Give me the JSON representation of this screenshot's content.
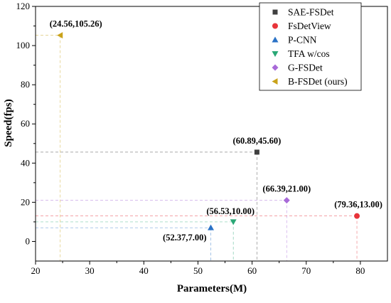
{
  "chart_data": {
    "type": "scatter",
    "title": "",
    "xlabel": "Parameters(M)",
    "ylabel": "Speed(fps)",
    "xlim": [
      20,
      85
    ],
    "ylim": [
      -10,
      120
    ],
    "xticks": [
      20,
      30,
      40,
      50,
      60,
      70,
      80
    ],
    "yticks": [
      0,
      20,
      40,
      60,
      80,
      100,
      120
    ],
    "grid": false,
    "legend_position": "top-right",
    "series": [
      {
        "name": "SAE-FSDet",
        "marker": "square",
        "color": "#404040",
        "x": 60.89,
        "y": 45.6,
        "label": "(60.89,45.60)"
      },
      {
        "name": "FsDetView",
        "marker": "circle",
        "color": "#e8343a",
        "x": 79.36,
        "y": 13.0,
        "label": "(79.36,13.00)"
      },
      {
        "name": "P-CNN",
        "marker": "triangle-up",
        "color": "#2a72c6",
        "x": 52.37,
        "y": 7.0,
        "label": "(52.37,7.00)"
      },
      {
        "name": "TFA w/cos",
        "marker": "triangle-down",
        "color": "#2aa876",
        "x": 56.53,
        "y": 10.0,
        "label": "(56.53,10.00)"
      },
      {
        "name": "G-FSDet",
        "marker": "diamond",
        "color": "#a86ad8",
        "x": 66.39,
        "y": 21.0,
        "label": "(66.39,21.00)"
      },
      {
        "name": "B-FSDet (ours)",
        "marker": "triangle-left",
        "color": "#c9a21a",
        "x": 24.56,
        "y": 105.26,
        "label": "(24.56,105.26)"
      }
    ]
  }
}
